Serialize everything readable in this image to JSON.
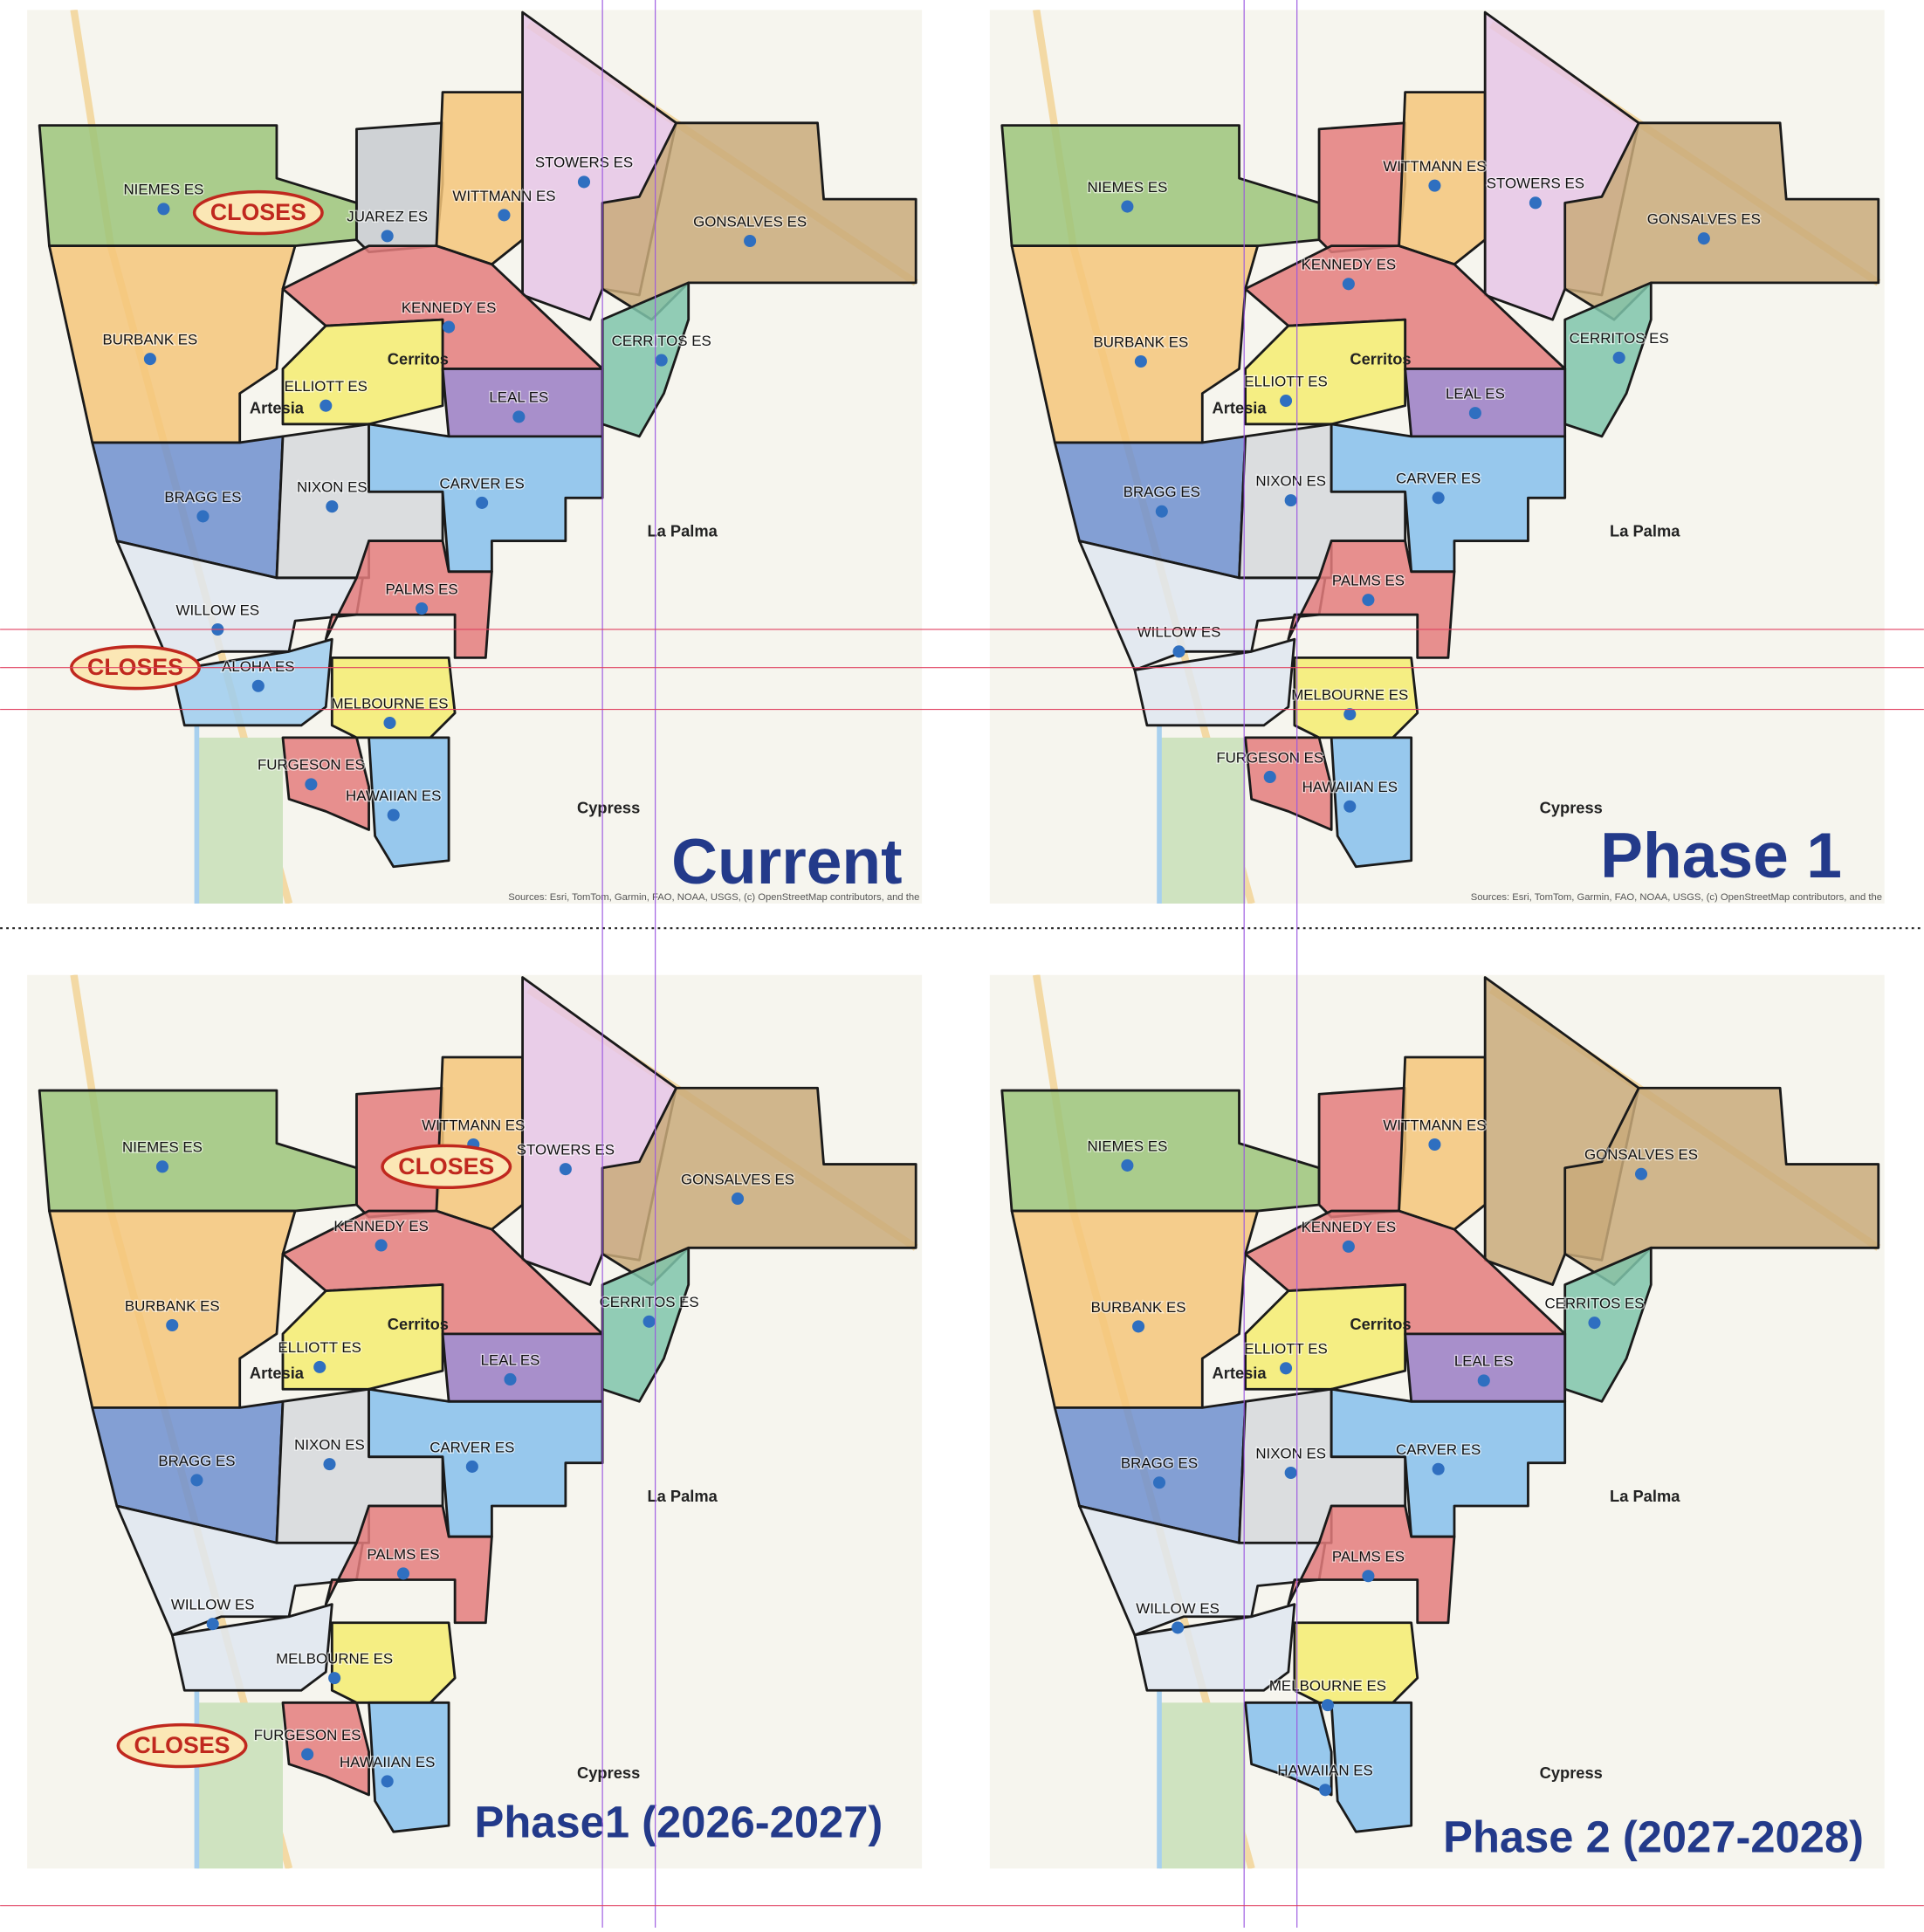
{
  "panels": [
    {
      "title": "Current",
      "schools": [
        "NIEMES ES",
        "JUAREZ ES",
        "WITTMANN ES",
        "STOWERS ES",
        "GONSALVES ES",
        "KENNEDY ES",
        "BURBANK ES",
        "CERRITOS ES",
        "ELLIOTT ES",
        "LEAL ES",
        "BRAGG ES",
        "NIXON ES",
        "CARVER ES",
        "WILLOW ES",
        "PALMS ES",
        "ALOHA ES",
        "MELBOURNE ES",
        "FURGESON ES",
        "HAWAIIAN ES"
      ],
      "closes": [
        "CLOSES",
        "CLOSES"
      ],
      "places": [
        "La Palma",
        "Cypress",
        "Cerritos",
        "Artesia"
      ],
      "source": "Sources: Esri, TomTom, Garmin, FAO, NOAA, USGS, (c) OpenStreetMap contributors, and the"
    },
    {
      "title": "Phase 1",
      "schools": [
        "NIEMES ES",
        "WITTMANN ES",
        "STOWERS ES",
        "GONSALVES ES",
        "KENNEDY ES",
        "BURBANK ES",
        "CERRITOS ES",
        "ELLIOTT ES",
        "LEAL ES",
        "BRAGG ES",
        "NIXON ES",
        "CARVER ES",
        "WILLOW ES",
        "PALMS ES",
        "MELBOURNE ES",
        "FURGESON ES",
        "HAWAIIAN ES"
      ],
      "closes": [],
      "places": [
        "La Palma",
        "Cypress",
        "Cerritos",
        "Artesia"
      ],
      "source": "Sources: Esri, TomTom, Garmin, FAO, NOAA, USGS, (c) OpenStreetMap contributors, and the"
    },
    {
      "title": "Phase1 (2026-2027)",
      "schools": [
        "NIEMES ES",
        "WITTMANN ES",
        "STOWERS ES",
        "GONSALVES ES",
        "KENNEDY ES",
        "BURBANK ES",
        "CERRITOS ES",
        "ELLIOTT ES",
        "LEAL ES",
        "BRAGG ES",
        "NIXON ES",
        "CARVER ES",
        "WILLOW ES",
        "PALMS ES",
        "MELBOURNE ES",
        "FURGESON ES",
        "HAWAIIAN ES"
      ],
      "closes": [
        "CLOSES",
        "CLOSES"
      ],
      "places": [
        "La Palma",
        "Cypress",
        "Cerritos",
        "Artesia"
      ],
      "source": ""
    },
    {
      "title": "Phase 2 (2027-2028)",
      "schools": [
        "NIEMES ES",
        "WITTMANN ES",
        "GONSALVES ES",
        "KENNEDY ES",
        "BURBANK ES",
        "CERRITOS ES",
        "ELLIOTT ES",
        "LEAL ES",
        "BRAGG ES",
        "NIXON ES",
        "CARVER ES",
        "WILLOW ES",
        "PALMS ES",
        "MELBOURNE ES",
        "HAWAIIAN ES"
      ],
      "closes": [],
      "places": [
        "La Palma",
        "Cypress",
        "Cerritos",
        "Artesia"
      ],
      "source": ""
    }
  ]
}
